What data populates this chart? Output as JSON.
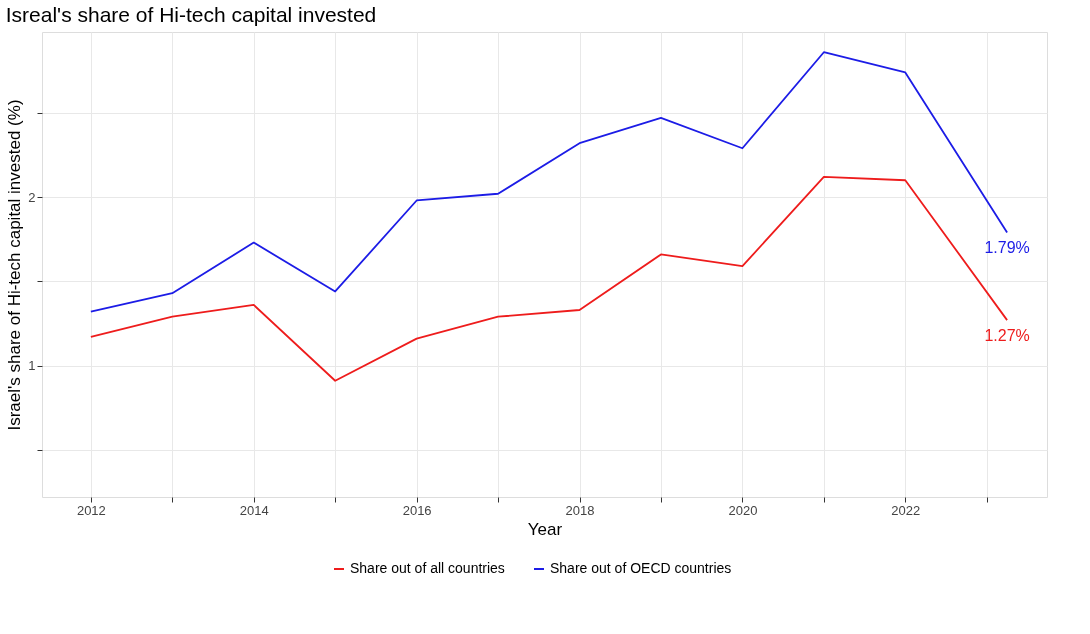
{
  "chart_data": {
    "type": "line",
    "title": "Isreal's share of Hi-tech capital invested",
    "xlabel": "Year",
    "ylabel": "Israel's share of Hi-tech capital invested (%)",
    "xlim": [
      2011.4,
      2023.74
    ],
    "ylim": [
      0.22,
      2.98
    ],
    "xticks": [
      2012,
      {
        "value": 2013,
        "label": null
      },
      2014,
      {
        "value": 2015,
        "label": null
      },
      2016,
      {
        "value": 2017,
        "label": null
      },
      2018,
      {
        "value": 2019,
        "label": null
      },
      2020,
      {
        "value": 2021,
        "label": null
      },
      2022,
      {
        "value": 2023,
        "label": null
      }
    ],
    "yticks": [
      {
        "value": 0.5,
        "label": null
      },
      1,
      {
        "value": 1.5,
        "label": null
      },
      2,
      {
        "value": 2.5,
        "label": null
      }
    ],
    "x": [
      2012,
      2013,
      2014,
      2015,
      2016,
      2017,
      2018,
      2019,
      2020,
      2021,
      2022,
      2023.25
    ],
    "series": [
      {
        "name": "Share out of all countries",
        "color": "#ee1c1c",
        "values": [
          1.17,
          1.29,
          1.36,
          0.91,
          1.16,
          1.29,
          1.33,
          1.66,
          1.59,
          2.12,
          2.1,
          1.27
        ]
      },
      {
        "name": "Share out of OECD countries",
        "color": "#1c1ce6",
        "values": [
          1.32,
          1.43,
          1.73,
          1.44,
          1.98,
          2.02,
          2.32,
          2.47,
          2.29,
          2.86,
          2.74,
          1.79
        ]
      }
    ],
    "annotations": [
      {
        "text": "1.27%",
        "x": 2023.25,
        "y": 1.27
      },
      {
        "text": "1.79%",
        "x": 2023.25,
        "y": 1.79
      }
    ],
    "grid": true,
    "legend": "bottom",
    "line_style": "solid",
    "marker": "none"
  }
}
